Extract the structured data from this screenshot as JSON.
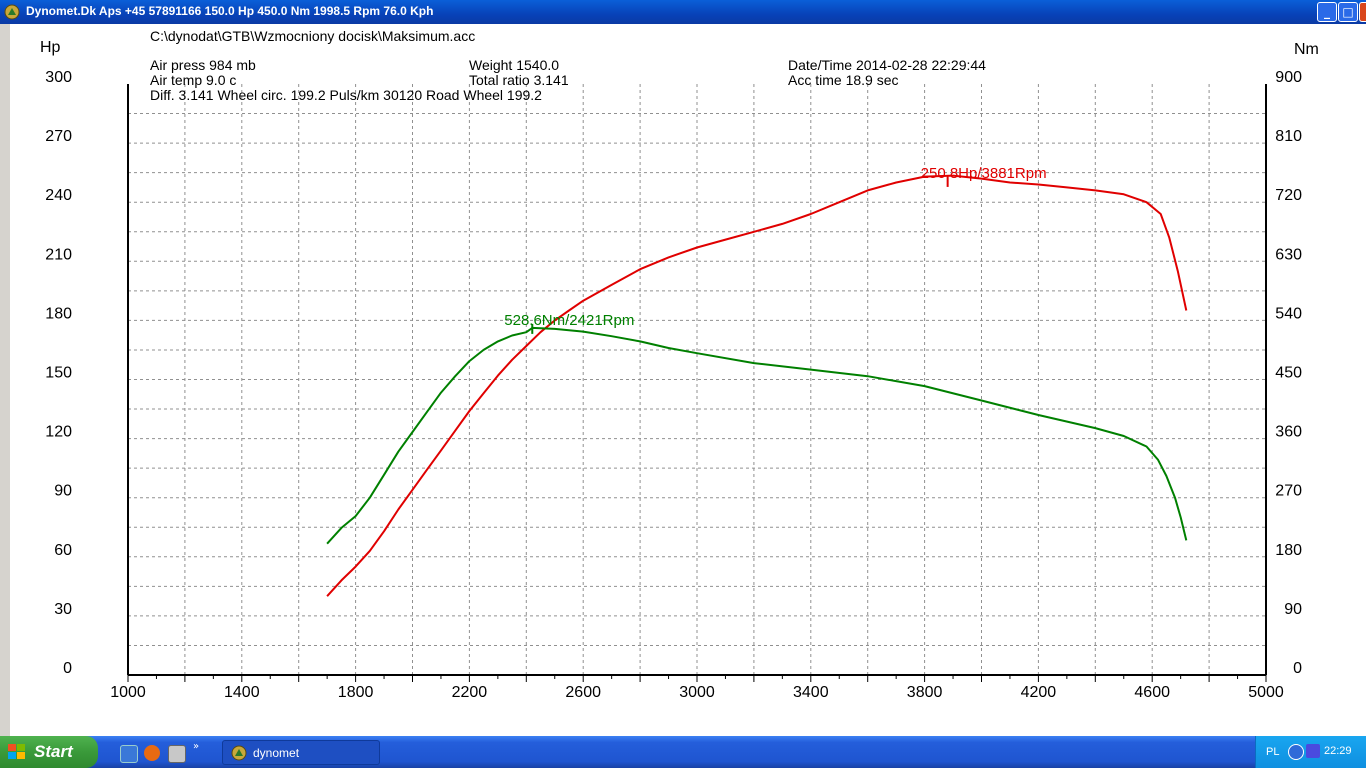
{
  "window": {
    "title": "Dynomet.Dk Aps +45 57891166  150.0 Hp 450.0 Nm 1998.5 Rpm 76.0 Kph",
    "min_label": "_",
    "max_label": "□",
    "close_label": "×"
  },
  "header": {
    "file_path": "C:\\dynodat\\GTB\\Wzmocniony docisk\\Maksimum.acc",
    "air_press": "Air press   984 mb",
    "air_temp": "Air temp   9.0 c",
    "diff": "Diff.    3.141   Wheel circ. 199.2   Puls/km   30120   Road Wheel 199.2",
    "weight": "Weight   1540.0",
    "total_ratio": "Total ratio 3.141",
    "date_time": "Date/Time  2014-02-28 22:29:44",
    "acc_time": "Acc time   18.9 sec"
  },
  "chart_data": {
    "type": "line",
    "xlabel": "",
    "ylabel_left": "Hp",
    "ylabel_right": "Nm",
    "xlim": [
      1000,
      5000
    ],
    "ylim_left": [
      0,
      300
    ],
    "ylim_right": [
      0,
      900
    ],
    "x_ticks": [
      1000,
      1400,
      1800,
      2200,
      2600,
      3000,
      3400,
      3800,
      4200,
      4600,
      5000
    ],
    "y_ticks_left": [
      0,
      30,
      60,
      90,
      120,
      150,
      180,
      210,
      240,
      270,
      300
    ],
    "y_ticks_right": [
      0,
      90,
      180,
      270,
      360,
      450,
      540,
      630,
      720,
      810,
      900
    ],
    "grid": true,
    "series": [
      {
        "axis": "left",
        "color": "#e00000",
        "x": [
          1700,
          1750,
          1800,
          1850,
          1900,
          1950,
          2000,
          2050,
          2100,
          2150,
          2200,
          2250,
          2300,
          2350,
          2400,
          2450,
          2500,
          2550,
          2600,
          2700,
          2800,
          2900,
          3000,
          3100,
          3200,
          3300,
          3400,
          3500,
          3600,
          3700,
          3800,
          3900,
          4000,
          4100,
          4200,
          4300,
          4400,
          4500,
          4580,
          4630,
          4660,
          4690,
          4720
        ],
        "values": [
          40,
          48,
          55,
          63,
          73,
          84,
          94,
          104,
          114,
          124,
          134,
          143,
          152,
          160,
          167,
          174,
          180,
          185,
          190,
          198,
          206,
          212,
          217,
          221,
          225,
          229,
          234,
          240,
          246,
          250,
          253,
          253.5,
          252,
          250,
          249,
          247.5,
          246,
          244,
          240,
          234,
          222,
          205,
          185
        ]
      },
      {
        "axis": "right",
        "color": "#008000",
        "x": [
          1700,
          1750,
          1800,
          1850,
          1900,
          1950,
          2000,
          2050,
          2100,
          2150,
          2200,
          2250,
          2300,
          2350,
          2400,
          2421,
          2500,
          2600,
          2700,
          2800,
          2900,
          3000,
          3200,
          3400,
          3600,
          3800,
          4000,
          4200,
          4400,
          4500,
          4580,
          4620,
          4650,
          4680,
          4700,
          4720
        ],
        "values": [
          200,
          224,
          242,
          270,
          305,
          340,
          370,
          400,
          430,
          455,
          478,
          495,
          508,
          517,
          522,
          528.6,
          527,
          523,
          516,
          508,
          498,
          490,
          475,
          465,
          455,
          440,
          418,
          396,
          376,
          364,
          348,
          328,
          303,
          270,
          240,
          205
        ]
      }
    ],
    "annotations": [
      {
        "label": "250.8Hp/3881Rpm",
        "series": 0,
        "x": 3881,
        "y": 250.8
      },
      {
        "label": "528.6Nm/2421Rpm",
        "series": 1,
        "x": 2421,
        "y": 528.6
      }
    ]
  },
  "taskbar": {
    "start_label": "Start",
    "task_label": "dynomet",
    "lang": "PL",
    "clock": "22:29"
  }
}
